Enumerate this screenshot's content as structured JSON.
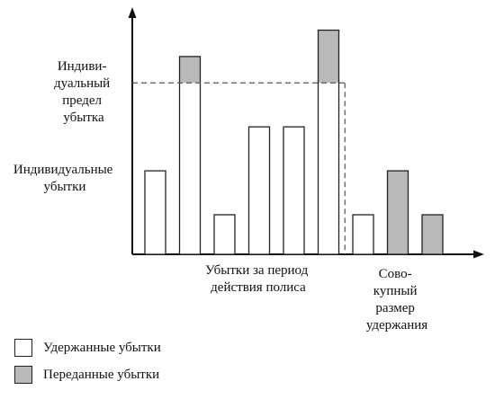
{
  "chart_data": {
    "type": "bar",
    "ylim": [
      0,
      5.5
    ],
    "bars": [
      {
        "retained": 1.9,
        "transferred": 0
      },
      {
        "retained": 3.9,
        "transferred": 0.6
      },
      {
        "retained": 0.9,
        "transferred": 0
      },
      {
        "retained": 2.9,
        "transferred": 0
      },
      {
        "retained": 2.9,
        "transferred": 0
      },
      {
        "retained": 3.9,
        "transferred": 1.2
      },
      {
        "retained": 0.9,
        "transferred": 0
      },
      {
        "retained": 0,
        "transferred": 1.9
      },
      {
        "retained": 0,
        "transferred": 0.9
      }
    ],
    "individual_limit": 3.9,
    "aggregate_retention_after_bar": 6,
    "labels": {
      "individual_limit": [
        "Индиви-",
        "дуальный",
        "предел",
        "убытка"
      ],
      "individual_losses": [
        "Индивидуальные",
        "убытки"
      ],
      "period_losses": [
        "Убытки за период",
        "действия полиса"
      ],
      "aggregate_retention": [
        "Сово-",
        "купный",
        "размер",
        "удержания"
      ]
    }
  },
  "legend": {
    "retained": "Удержанные убытки",
    "transferred": "Переданные убытки"
  },
  "colors": {
    "axis": "#111111",
    "bar_outline": "#222222",
    "retained_fill": "#ffffff",
    "transferred_fill": "#b9b9b9",
    "dashed": "#555555"
  }
}
